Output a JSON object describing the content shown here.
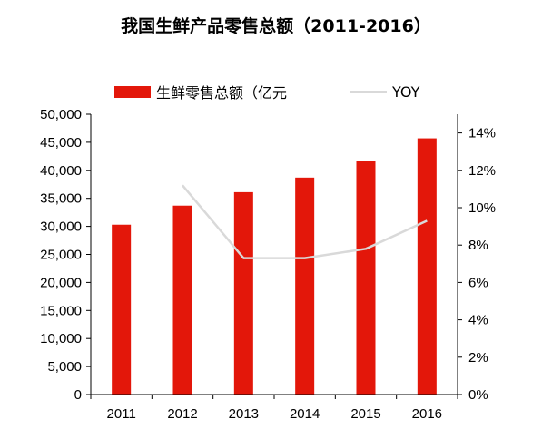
{
  "chart_data": {
    "type": "bar",
    "title": "我国生鲜产品零售总额（2011-2016）",
    "categories": [
      "2011",
      "2012",
      "2013",
      "2014",
      "2015",
      "2016"
    ],
    "series": [
      {
        "name": "生鲜零售总额（亿元",
        "type": "bar",
        "axis": "left",
        "color": "#e3170a",
        "values": [
          30300,
          33700,
          36100,
          38700,
          41700,
          45700
        ]
      },
      {
        "name": "YOY",
        "type": "line",
        "axis": "right",
        "color": "#d9d9d9",
        "values": [
          null,
          11.2,
          7.3,
          7.3,
          7.8,
          9.3
        ]
      }
    ],
    "y_left": {
      "lim": [
        0,
        50000
      ],
      "ticks": [
        0,
        5000,
        10000,
        15000,
        20000,
        25000,
        30000,
        35000,
        40000,
        45000,
        50000
      ],
      "tick_labels": [
        "0",
        "5,000",
        "10,000",
        "15,000",
        "20,000",
        "25,000",
        "30,000",
        "35,000",
        "40,000",
        "45,000",
        "50,000"
      ]
    },
    "y_right": {
      "lim": [
        0,
        15
      ],
      "ticks": [
        0,
        2,
        4,
        6,
        8,
        10,
        12,
        14
      ],
      "tick_labels": [
        "0%",
        "2%",
        "4%",
        "6%",
        "8%",
        "10%",
        "12%",
        "14%"
      ]
    },
    "legend_position": "top",
    "grid": false
  }
}
